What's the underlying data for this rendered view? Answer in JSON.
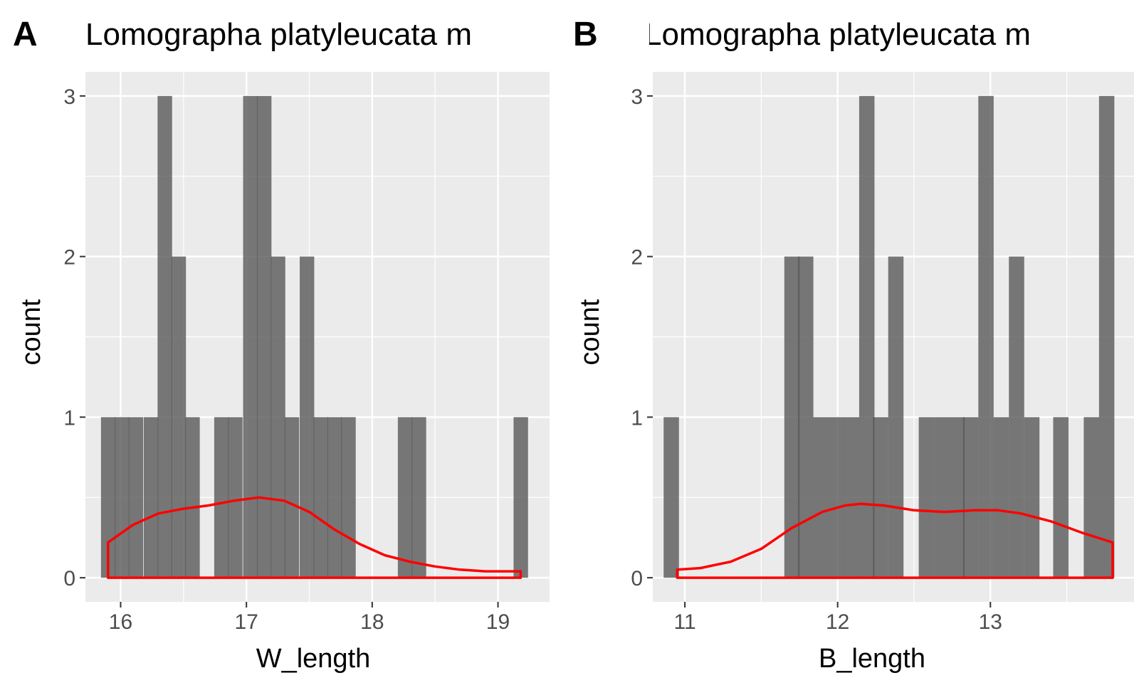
{
  "colors": {
    "panel_bg": "#ebebeb",
    "grid": "#ffffff",
    "bar": "#595959",
    "density": "#ff0000",
    "tick_text": "#4d4d4d"
  },
  "chart_data": [
    {
      "tag": "A",
      "type": "bar",
      "title": "Lomographa platyleucata m",
      "xlabel": "W_length",
      "ylabel": "count",
      "xlim": [
        15.72,
        19.41
      ],
      "ylim": [
        -0.15,
        3.15
      ],
      "x_ticks": [
        16,
        17,
        18,
        19
      ],
      "y_ticks": [
        0,
        1,
        2,
        3
      ],
      "grid": true,
      "bin_width": 0.1125,
      "bars": [
        {
          "x": 15.9,
          "count": 1
        },
        {
          "x": 16.01,
          "count": 1
        },
        {
          "x": 16.12,
          "count": 1
        },
        {
          "x": 16.24,
          "count": 1
        },
        {
          "x": 16.35,
          "count": 3
        },
        {
          "x": 16.46,
          "count": 2
        },
        {
          "x": 16.57,
          "count": 1
        },
        {
          "x": 16.69,
          "count": 0
        },
        {
          "x": 16.8,
          "count": 1
        },
        {
          "x": 16.91,
          "count": 1
        },
        {
          "x": 17.03,
          "count": 3
        },
        {
          "x": 17.14,
          "count": 3
        },
        {
          "x": 17.25,
          "count": 2
        },
        {
          "x": 17.36,
          "count": 1
        },
        {
          "x": 17.48,
          "count": 2
        },
        {
          "x": 17.59,
          "count": 1
        },
        {
          "x": 17.7,
          "count": 1
        },
        {
          "x": 17.81,
          "count": 1
        },
        {
          "x": 18.26,
          "count": 1
        },
        {
          "x": 18.37,
          "count": 1
        },
        {
          "x": 19.18,
          "count": 1
        }
      ],
      "density": [
        [
          15.9,
          0.22
        ],
        [
          16.1,
          0.33
        ],
        [
          16.3,
          0.4
        ],
        [
          16.5,
          0.43
        ],
        [
          16.7,
          0.45
        ],
        [
          16.9,
          0.48
        ],
        [
          17.1,
          0.5
        ],
        [
          17.3,
          0.48
        ],
        [
          17.5,
          0.41
        ],
        [
          17.7,
          0.3
        ],
        [
          17.9,
          0.21
        ],
        [
          18.1,
          0.14
        ],
        [
          18.3,
          0.1
        ],
        [
          18.5,
          0.07
        ],
        [
          18.7,
          0.05
        ],
        [
          18.9,
          0.04
        ],
        [
          19.05,
          0.04
        ],
        [
          19.18,
          0.04
        ]
      ]
    },
    {
      "tag": "B",
      "type": "bar",
      "title": "Lomographa platyleucata m",
      "xlabel": "B_length",
      "ylabel": "count",
      "xlim": [
        10.79,
        13.94
      ],
      "ylim": [
        -0.15,
        3.15
      ],
      "x_ticks": [
        11,
        12,
        13
      ],
      "y_ticks": [
        0,
        1,
        2,
        3
      ],
      "grid": true,
      "bin_width": 0.098,
      "bars": [
        {
          "x": 10.91,
          "count": 1
        },
        {
          "x": 11.7,
          "count": 2
        },
        {
          "x": 11.79,
          "count": 2
        },
        {
          "x": 11.89,
          "count": 1
        },
        {
          "x": 11.99,
          "count": 1
        },
        {
          "x": 12.09,
          "count": 1
        },
        {
          "x": 12.19,
          "count": 3
        },
        {
          "x": 12.28,
          "count": 1
        },
        {
          "x": 12.38,
          "count": 2
        },
        {
          "x": 12.58,
          "count": 1
        },
        {
          "x": 12.68,
          "count": 1
        },
        {
          "x": 12.78,
          "count": 1
        },
        {
          "x": 12.87,
          "count": 1
        },
        {
          "x": 12.97,
          "count": 3
        },
        {
          "x": 13.07,
          "count": 1
        },
        {
          "x": 13.17,
          "count": 2
        },
        {
          "x": 13.27,
          "count": 1
        },
        {
          "x": 13.46,
          "count": 1
        },
        {
          "x": 13.66,
          "count": 1
        },
        {
          "x": 13.76,
          "count": 3
        }
      ],
      "density": [
        [
          10.95,
          0.05
        ],
        [
          11.1,
          0.06
        ],
        [
          11.3,
          0.1
        ],
        [
          11.5,
          0.18
        ],
        [
          11.7,
          0.31
        ],
        [
          11.9,
          0.41
        ],
        [
          12.05,
          0.45
        ],
        [
          12.15,
          0.46
        ],
        [
          12.3,
          0.45
        ],
        [
          12.5,
          0.42
        ],
        [
          12.7,
          0.41
        ],
        [
          12.9,
          0.42
        ],
        [
          13.05,
          0.42
        ],
        [
          13.2,
          0.4
        ],
        [
          13.4,
          0.35
        ],
        [
          13.6,
          0.28
        ],
        [
          13.8,
          0.22
        ]
      ]
    }
  ]
}
